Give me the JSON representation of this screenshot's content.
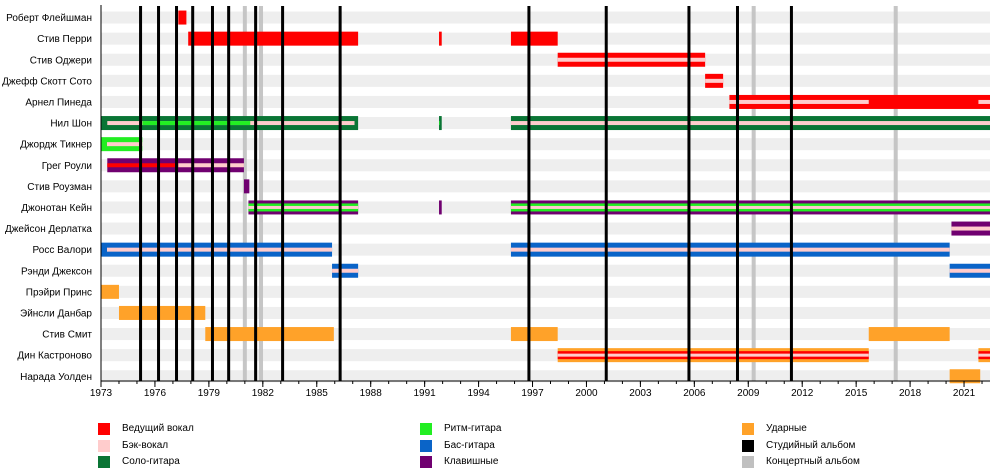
{
  "chart_data": {
    "type": "timeline",
    "title": "",
    "xlabel": "",
    "ylabel": "",
    "x_range": [
      1973,
      2022.5
    ],
    "x_ticks": [
      "1973",
      "1976",
      "1979",
      "1982",
      "1985",
      "1988",
      "1991",
      "1994",
      "1997",
      "2000",
      "2003",
      "2006",
      "2009",
      "2012",
      "2015",
      "2018",
      "2021"
    ],
    "grid": false,
    "colors": {
      "lead_vocals": "#ff0000",
      "backing_vocals": "#ffcccc",
      "lead_guitar": "#0a7535",
      "rhythm_guitar": "#22ee22",
      "bass": "#0a64c8",
      "keyboards": "#700070",
      "drums": "#ffa229",
      "studio_album": "#000000",
      "live_album": "#c0c0c0"
    },
    "members": [
      {
        "name": "Роберт Флейшман",
        "bars": [
          {
            "role": "lead_vocals",
            "start": 1977.3,
            "end": 1977.75
          }
        ]
      },
      {
        "name": "Стив Перри",
        "bars": [
          {
            "role": "lead_vocals",
            "start": 1977.85,
            "end": 1987.3
          },
          {
            "role": "lead_vocals",
            "start": 1991.8,
            "end": 1991.95
          },
          {
            "role": "lead_vocals",
            "start": 1995.8,
            "end": 1998.4
          }
        ]
      },
      {
        "name": "Стив Оджери",
        "bars": [
          {
            "role": "lead_vocals",
            "start": 1998.4,
            "end": 2006.6,
            "inner": "backing_vocals"
          }
        ]
      },
      {
        "name": "Джефф Скотт Сото",
        "bars": [
          {
            "role": "lead_vocals",
            "start": 2006.6,
            "end": 2007.6,
            "inner": "backing_vocals"
          }
        ]
      },
      {
        "name": "Арнел Пинеда",
        "bars": [
          {
            "role": "lead_vocals",
            "start": 2007.95,
            "end": 2022.5,
            "inner_segments": [
              {
                "role": "backing_vocals",
                "start": 2007.95,
                "end": 2015.7
              },
              {
                "role": "backing_vocals",
                "start": 2021.8,
                "end": 2022.5
              }
            ]
          }
        ]
      },
      {
        "name": "Нил Шон",
        "bars": [
          {
            "role": "lead_guitar",
            "start": 1973,
            "end": 1987.3,
            "inner_segments": [
              {
                "role": "backing_vocals",
                "start": 1973.35,
                "end": 1987.1
              },
              {
                "role": "rhythm_guitar",
                "start": 1975.3,
                "end": 1981.3
              }
            ]
          },
          {
            "role": "lead_guitar",
            "start": 1991.8,
            "end": 1991.95,
            "inner": "rhythm_guitar"
          },
          {
            "role": "lead_guitar",
            "start": 1995.8,
            "end": 2022.5,
            "inner": "backing_vocals"
          }
        ]
      },
      {
        "name": "Джордж Тикнер",
        "bars": [
          {
            "role": "rhythm_guitar",
            "start": 1973,
            "end": 1975.3,
            "inner": "backing_vocals"
          }
        ]
      },
      {
        "name": "Грег Роули",
        "bars": [
          {
            "role": "keyboards",
            "start": 1973.35,
            "end": 1980.95,
            "inner_segments": [
              {
                "role": "lead_vocals",
                "start": 1973.35,
                "end": 1977.3
              },
              {
                "role": "backing_vocals",
                "start": 1977.3,
                "end": 1980.95
              }
            ]
          }
        ]
      },
      {
        "name": "Стив Роузман",
        "bars": [
          {
            "role": "keyboards",
            "start": 1980.95,
            "end": 1981.25
          }
        ]
      },
      {
        "name": "Джонотан Кейн",
        "bars": [
          {
            "role": "keyboards",
            "start": 1981.2,
            "end": 1987.3,
            "inner": "rhythm_guitar",
            "core": "backing_vocals"
          },
          {
            "role": "keyboards",
            "start": 1991.8,
            "end": 1991.95
          },
          {
            "role": "keyboards",
            "start": 1995.8,
            "end": 2022.5,
            "inner": "rhythm_guitar",
            "core": "backing_vocals"
          }
        ]
      },
      {
        "name": "Джейсон Дерлатка",
        "bars": [
          {
            "role": "keyboards",
            "start": 2020.3,
            "end": 2022.5,
            "inner": "backing_vocals"
          }
        ]
      },
      {
        "name": "Росс Валори",
        "bars": [
          {
            "role": "bass",
            "start": 1973,
            "end": 1985.85,
            "inner": "backing_vocals"
          },
          {
            "role": "bass",
            "start": 1995.8,
            "end": 2020.2,
            "inner": "backing_vocals"
          }
        ]
      },
      {
        "name": "Рэнди Джексон",
        "bars": [
          {
            "role": "bass",
            "start": 1985.85,
            "end": 1987.3,
            "inner": "backing_vocals"
          },
          {
            "role": "bass",
            "start": 2020.2,
            "end": 2022.5,
            "inner": "backing_vocals"
          }
        ]
      },
      {
        "name": "Прэйри Принс",
        "bars": [
          {
            "role": "drums",
            "start": 1973,
            "end": 1974
          }
        ]
      },
      {
        "name": "Эйнсли Данбар",
        "bars": [
          {
            "role": "drums",
            "start": 1974,
            "end": 1978.8
          }
        ]
      },
      {
        "name": "Стив Смит",
        "bars": [
          {
            "role": "drums",
            "start": 1978.8,
            "end": 1985.95
          },
          {
            "role": "drums",
            "start": 1995.8,
            "end": 1998.4
          },
          {
            "role": "drums",
            "start": 2015.7,
            "end": 2020.2
          }
        ]
      },
      {
        "name": "Дин Кастроново",
        "bars": [
          {
            "role": "drums",
            "start": 1998.4,
            "end": 2015.7,
            "inner": "lead_vocals",
            "core": "backing_vocals"
          },
          {
            "role": "drums",
            "start": 2021.8,
            "end": 2022.5,
            "inner": "lead_vocals",
            "core": "backing_vocals"
          }
        ]
      },
      {
        "name": "Нарада Уолден",
        "bars": [
          {
            "role": "drums",
            "start": 2020.2,
            "end": 2021.9
          }
        ]
      }
    ],
    "studio_albums": [
      1975.2,
      1976.2,
      1977.2,
      1978.1,
      1979.2,
      1980.1,
      1981.6,
      1983.1,
      1986.3,
      1996.8,
      2001.1,
      2005.7,
      2008.4,
      2011.4
    ],
    "live_albums": [
      1981.0,
      1981.9,
      2009.3,
      2017.2
    ],
    "legend": [
      {
        "key": "lead_vocals",
        "label": "Ведущий вокал"
      },
      {
        "key": "backing_vocals",
        "label": "Бэк-вокал"
      },
      {
        "key": "lead_guitar",
        "label": "Соло-гитара"
      },
      {
        "key": "rhythm_guitar",
        "label": "Ритм-гитара"
      },
      {
        "key": "bass",
        "label": "Бас-гитара"
      },
      {
        "key": "keyboards",
        "label": "Клавишные"
      },
      {
        "key": "drums",
        "label": "Ударные"
      },
      {
        "key": "studio_album",
        "label": "Студийный альбом"
      },
      {
        "key": "live_album",
        "label": "Концертный альбом"
      }
    ]
  }
}
